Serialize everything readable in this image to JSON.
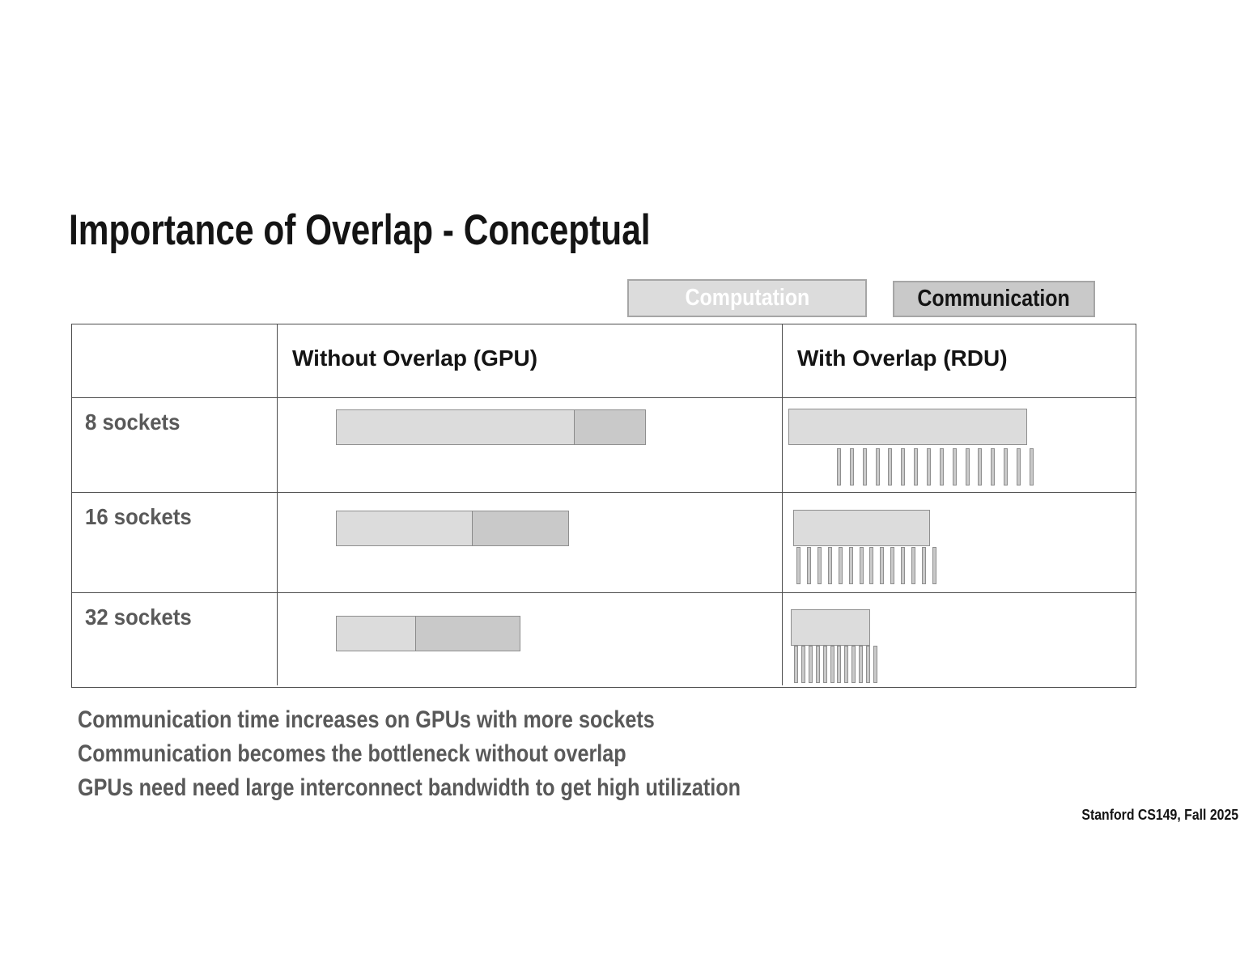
{
  "slide": {
    "title": "Importance of Overlap - Conceptual",
    "footer": "Stanford CS149, Fall 2025"
  },
  "legend": {
    "computation_label": "Computation",
    "communication_label": "Communication"
  },
  "colors": {
    "computation": "#dcdcdc",
    "communication": "#c9c9c9",
    "bar_border": "#8f8f8f",
    "table_border": "#4d4d4d",
    "muted_text": "#595959"
  },
  "table": {
    "col_headers": [
      "",
      "Without Overlap (GPU)",
      "With Overlap (RDU)"
    ],
    "rows": [
      {
        "label": "8 sockets",
        "gpu": {
          "computation_w": 295,
          "communication_w": 89
        },
        "rdu": {
          "computation_w": 295,
          "tick_count": 16,
          "tick_span": 243
        }
      },
      {
        "label": "16 sockets",
        "gpu": {
          "computation_w": 169,
          "communication_w": 120
        },
        "rdu": {
          "computation_w": 169,
          "tick_count": 14,
          "tick_span": 173
        }
      },
      {
        "label": "32 sockets",
        "gpu": {
          "computation_w": 99,
          "communication_w": 130
        },
        "rdu": {
          "computation_w": 98,
          "tick_count": 12,
          "tick_span": 103
        }
      }
    ]
  },
  "notes": [
    "Communication time increases on GPUs with more sockets",
    "Communication becomes the bottleneck without overlap",
    "GPUs need need large interconnect bandwidth to get high utilization"
  ]
}
